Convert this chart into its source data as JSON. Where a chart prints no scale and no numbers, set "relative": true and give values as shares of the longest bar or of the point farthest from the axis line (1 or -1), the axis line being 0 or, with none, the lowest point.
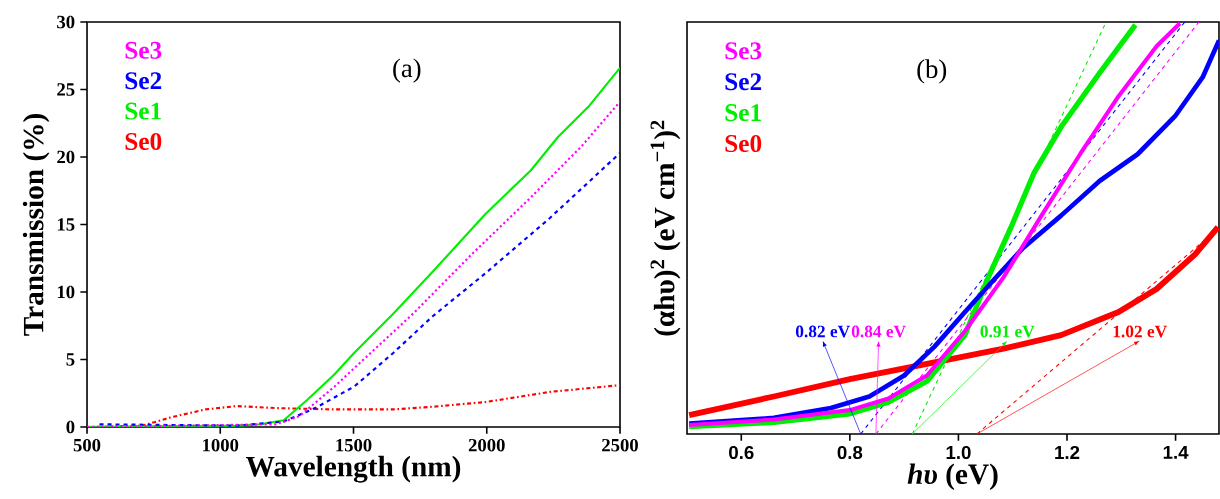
{
  "chart_data": [
    {
      "type": "line",
      "title": "(a)",
      "xlabel": "Wavelength (nm)",
      "ylabel": "Transmission (%)",
      "xlim": [
        500,
        2500
      ],
      "ylim": [
        0,
        30
      ],
      "xticks": [
        500,
        1000,
        1500,
        2000,
        2500
      ],
      "yticks": [
        0,
        5,
        10,
        15,
        20,
        25,
        30
      ],
      "legend": "top left",
      "series": [
        {
          "name": "Se3",
          "color": "#ff00ff",
          "line_style": "dotted",
          "x": [
            500,
            1209,
            1297,
            1429,
            1576,
            1724,
            1944,
            2165,
            2356,
            2500
          ],
          "values": [
            0,
            0.2,
            0.8,
            3.0,
            5.7,
            8.4,
            12.8,
            17.0,
            20.8,
            24.1
          ]
        },
        {
          "name": "Se2",
          "color": "#0000ff",
          "line_style": "dashed",
          "x": [
            547,
            1062,
            1238,
            1356,
            1503,
            1650,
            1797,
            1996,
            2238,
            2500
          ],
          "values": [
            0.2,
            0.1,
            0.4,
            1.4,
            3.0,
            5.5,
            8.2,
            11.4,
            15.5,
            20.3
          ]
        },
        {
          "name": "Se1",
          "color": "#00ee00",
          "line_style": "solid",
          "x": [
            500,
            1062,
            1150,
            1238,
            1326,
            1429,
            1503,
            1650,
            1797,
            1996,
            2165,
            2268,
            2385,
            2500
          ],
          "values": [
            0,
            0.1,
            0.2,
            0.5,
            2.0,
            3.9,
            5.5,
            8.4,
            11.5,
            15.8,
            19.0,
            21.5,
            23.8,
            26.6
          ]
        },
        {
          "name": "Se0",
          "color": "#ff0000",
          "line_style": "dashdot",
          "x": [
            500,
            709,
            812,
            944,
            1062,
            1209,
            1429,
            1650,
            1797,
            1996,
            2238,
            2500
          ],
          "values": [
            0,
            0.1,
            0.7,
            1.3,
            1.55,
            1.4,
            1.3,
            1.3,
            1.5,
            1.85,
            2.6,
            3.1
          ]
        }
      ]
    },
    {
      "type": "line",
      "title": "(b)",
      "xlabel": "*hυ* (eV)",
      "ylabel": "(αhυ)$^{2}$ (eV cm$^{−1}$)$^{2}$",
      "relative": true,
      "tick_labels": "x",
      "xlim": [
        0.5,
        1.48
      ],
      "xticks": [
        {
          "value": 0.6,
          "label": "0.6"
        },
        {
          "value": 0.8,
          "label": "0.8"
        },
        {
          "value": 1.0,
          "label": "1.0"
        },
        {
          "value": 1.2,
          "label": "1.2"
        },
        {
          "value": 1.4,
          "label": "1.4"
        }
      ],
      "legend": "top left",
      "annotations": [
        {
          "text": "0.82 eV",
          "x": 0.82,
          "y": 0
        },
        {
          "text": "0.84 eV",
          "x": 0.848,
          "y": 0
        },
        {
          "text": "0.91 eV",
          "x": 0.915,
          "y": 0
        },
        {
          "text": "1.02 eV",
          "x": 1.034,
          "y": 0
        }
      ],
      "series": [
        {
          "name": "Se3",
          "color": "#ff00ff",
          "x": [
            0.504,
            0.66,
            0.8,
            0.871,
            0.942,
            1.012,
            1.083,
            1.153,
            1.224,
            1.295,
            1.365,
            1.408
          ],
          "values": [
            0.022,
            0.035,
            0.058,
            0.086,
            0.142,
            0.25,
            0.38,
            0.53,
            0.679,
            0.82,
            0.941,
            0.997
          ]
        },
        {
          "name": "Se2",
          "color": "#0000ff",
          "x": [
            0.504,
            0.66,
            0.765,
            0.836,
            0.9,
            0.956,
            1.012,
            1.069,
            1.118,
            1.189,
            1.26,
            1.33,
            1.4,
            1.45,
            1.48
          ],
          "values": [
            0.025,
            0.039,
            0.063,
            0.091,
            0.142,
            0.212,
            0.296,
            0.38,
            0.45,
            0.53,
            0.614,
            0.679,
            0.773,
            0.866,
            0.955
          ]
        },
        {
          "name": "Se1",
          "color": "#00ee00",
          "x": [
            0.504,
            0.66,
            0.8,
            0.871,
            0.942,
            1.012,
            1.055,
            1.097,
            1.139,
            1.189,
            1.26,
            1.326
          ],
          "values": [
            0.018,
            0.028,
            0.049,
            0.077,
            0.128,
            0.24,
            0.38,
            0.502,
            0.633,
            0.745,
            0.876,
            0.993
          ]
        },
        {
          "name": "Se0",
          "color": "#ff0000",
          "x": [
            0.504,
            0.66,
            0.8,
            0.942,
            1.083,
            1.189,
            1.295,
            1.365,
            1.436,
            1.478
          ],
          "values": [
            0.046,
            0.091,
            0.133,
            0.17,
            0.207,
            0.24,
            0.296,
            0.352,
            0.436,
            0.502
          ]
        },
        {
          "color": "#0000ff",
          "line_style": "dashed",
          "x": [
            0.82,
            1.417
          ],
          "values": [
            0,
            1.0
          ]
        },
        {
          "color": "#ff00ff",
          "line_style": "dashed",
          "x": [
            0.848,
            1.443
          ],
          "values": [
            0,
            1.0
          ]
        },
        {
          "color": "#00ee00",
          "line_style": "dashed",
          "x": [
            0.915,
            1.272
          ],
          "values": [
            0,
            1.0
          ]
        },
        {
          "color": "#ff0000",
          "line_style": "dashed",
          "x": [
            1.034,
            1.48
          ],
          "values": [
            0,
            0.5
          ]
        }
      ]
    }
  ]
}
